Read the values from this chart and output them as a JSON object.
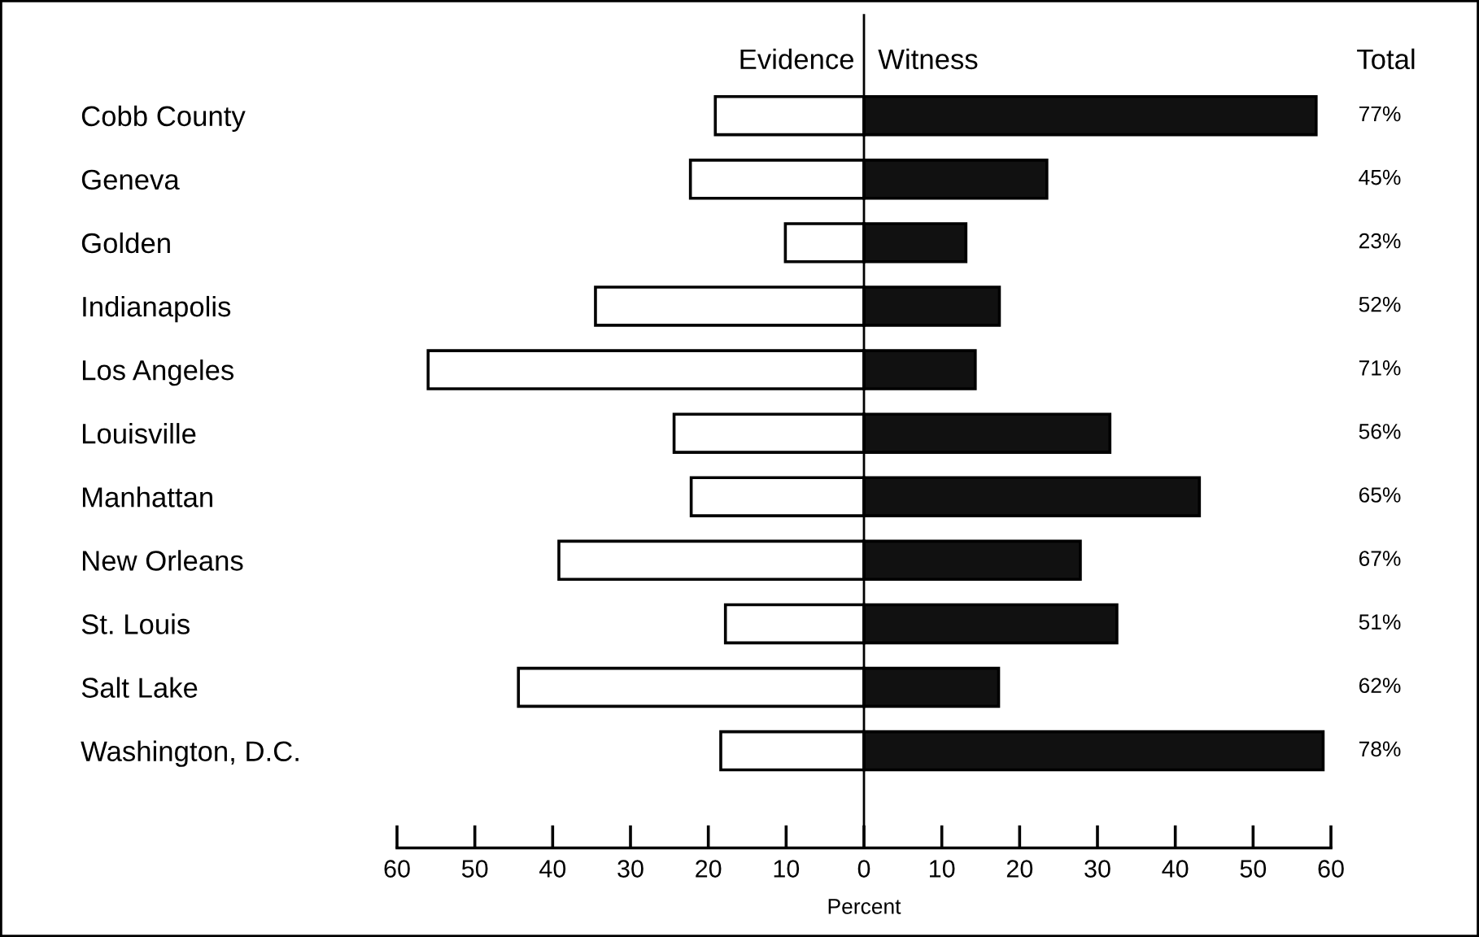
{
  "chart_data": {
    "type": "bar",
    "orientation": "horizontal",
    "stacked": true,
    "categories": [
      "Cobb County",
      "Geneva",
      "Golden",
      "Indianapolis",
      "Los Angeles",
      "Louisville",
      "Manhattan",
      "New Orleans",
      "St. Louis",
      "Salt Lake",
      "Washington, D.C."
    ],
    "series": [
      {
        "name": "Evidence",
        "color": "#ffffff",
        "values": [
          -19.1,
          -22.3,
          -10.1,
          -34.5,
          -56.0,
          -24.4,
          -22.2,
          -39.2,
          -17.8,
          -44.4,
          -18.4
        ]
      },
      {
        "name": "Witness",
        "color": "#111111",
        "values": [
          58.1,
          23.5,
          13.1,
          17.4,
          14.3,
          31.6,
          43.1,
          27.8,
          32.5,
          17.3,
          59.0
        ]
      }
    ],
    "annotations": [
      "Total",
      "77%",
      "45%",
      "23%",
      "52%",
      "71%",
      "56%",
      "65%",
      "67%",
      "51%",
      "62%",
      "78%"
    ],
    "xlabel": "Percent",
    "xlim": [
      -60,
      60
    ],
    "xticks": [
      {
        "value": -60,
        "label": "60"
      },
      {
        "value": -50,
        "label": "50"
      },
      {
        "value": -40,
        "label": "40"
      },
      {
        "value": -30,
        "label": "30"
      },
      {
        "value": -20,
        "label": "20"
      },
      {
        "value": -10,
        "label": "10"
      },
      0,
      10,
      20,
      30,
      40,
      50,
      60
    ],
    "ref_lines": [
      {
        "axis": "x",
        "value": 0,
        "label": null,
        "color": "#000000"
      }
    ],
    "grid": false,
    "legend": false
  }
}
